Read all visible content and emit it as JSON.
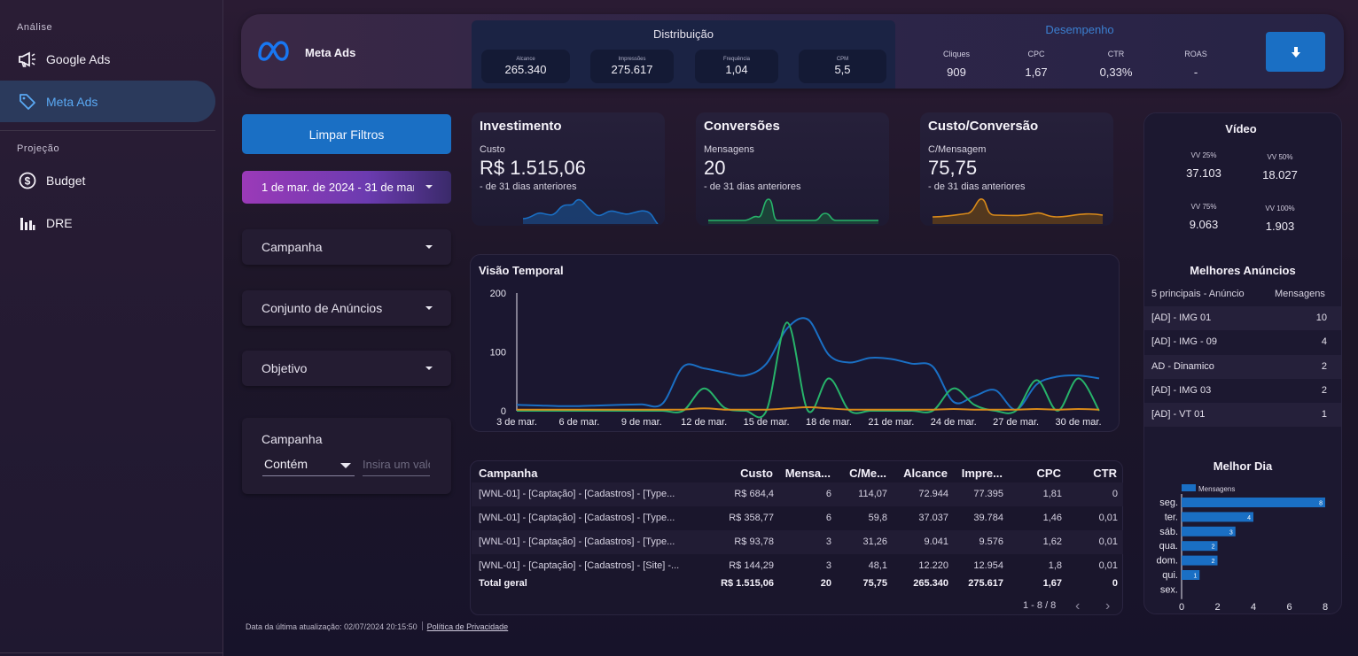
{
  "sidebar": {
    "section_analysis": "Análise",
    "section_projection": "Projeção",
    "items": [
      {
        "label": "Google Ads",
        "icon": "megaphone-icon"
      },
      {
        "label": "Meta Ads",
        "icon": "tag-icon",
        "active": true
      },
      {
        "label": "Budget",
        "icon": "dollar-circle-icon"
      },
      {
        "label": "DRE",
        "icon": "bar-chart-icon"
      }
    ]
  },
  "header": {
    "title": "Meta Ads",
    "distribution": {
      "title": "Distribuição",
      "kpis": [
        {
          "label": "Alcance",
          "value": "265.340"
        },
        {
          "label": "Impressões",
          "value": "275.617"
        },
        {
          "label": "Frequência",
          "value": "1,04"
        },
        {
          "label": "CPM",
          "value": "5,5"
        }
      ]
    },
    "performance": {
      "title": "Desempenho",
      "kpis": [
        {
          "label": "Cliques",
          "value": "909"
        },
        {
          "label": "CPC",
          "value": "1,67"
        },
        {
          "label": "CTR",
          "value": "0,33%"
        },
        {
          "label": "ROAS",
          "value": "-"
        }
      ]
    },
    "download_icon": "download-arrow-icon"
  },
  "filters": {
    "clear_label": "Limpar Filtros",
    "date_range": "1 de mar. de 2024 - 31 de mar. de 2024",
    "campaign": "Campanha",
    "adset": "Conjunto de Anúncios",
    "objective": "Objetivo",
    "search": {
      "title": "Campanha",
      "operator": "Contém",
      "placeholder": "Insira um valor"
    }
  },
  "scorecards": [
    {
      "title": "Investimento",
      "metric": "Custo",
      "value": "R$ 1.515,06",
      "comparison": "- de 31 dias anteriores",
      "color": "#1a6fc4"
    },
    {
      "title": "Conversões",
      "metric": "Mensagens",
      "value": "20",
      "comparison": "- de 31 dias anteriores",
      "color": "#27b36a"
    },
    {
      "title": "Custo/Conversão",
      "metric": "C/Mensagem",
      "value": "75,75",
      "comparison": "- de 31 dias anteriores",
      "color": "#d98a1a"
    }
  ],
  "timeline": {
    "title": "Visão Temporal"
  },
  "chart_data": {
    "type": "line",
    "title": "Visão Temporal",
    "x": [
      "3 de mar.",
      "4 de mar.",
      "5 de mar.",
      "6 de mar.",
      "7 de mar.",
      "8 de mar.",
      "9 de mar.",
      "10 de mar.",
      "11 de mar.",
      "12 de mar.",
      "13 de mar.",
      "14 de mar.",
      "15 de mar.",
      "16 de mar.",
      "17 de mar.",
      "18 de mar.",
      "19 de mar.",
      "20 de mar.",
      "21 de mar.",
      "22 de mar.",
      "23 de mar.",
      "24 de mar.",
      "25 de mar.",
      "26 de mar.",
      "27 de mar.",
      "28 de mar.",
      "29 de mar.",
      "30 de mar.",
      "31 de mar."
    ],
    "xticks": [
      "3 de mar.",
      "6 de mar.",
      "9 de mar.",
      "12 de mar.",
      "15 de mar.",
      "18 de mar.",
      "21 de mar.",
      "24 de mar.",
      "27 de mar.",
      "30 de mar."
    ],
    "yticks": [
      "0",
      "100",
      "200"
    ],
    "ylim": [
      0,
      200
    ],
    "series": [
      {
        "color": "#1a6fc4",
        "values": [
          10,
          9,
          8,
          8,
          9,
          10,
          11,
          12,
          75,
          72,
          65,
          60,
          80,
          140,
          155,
          95,
          82,
          90,
          88,
          80,
          75,
          15,
          25,
          35,
          2,
          45,
          58,
          60,
          55
        ]
      },
      {
        "color": "#27b36a",
        "values": [
          0,
          0,
          0,
          0,
          0,
          0,
          0,
          0,
          0,
          38,
          5,
          0,
          0,
          150,
          0,
          55,
          0,
          0,
          0,
          0,
          0,
          38,
          10,
          0,
          0,
          52,
          0,
          55,
          0
        ]
      },
      {
        "color": "#d98a1a",
        "values": [
          2,
          2,
          2,
          2,
          2,
          2,
          2,
          2,
          2,
          4,
          2,
          2,
          2,
          4,
          6,
          4,
          2,
          2,
          2,
          2,
          2,
          3,
          2,
          2,
          2,
          3,
          2,
          3,
          2
        ]
      }
    ]
  },
  "table": {
    "headers": [
      "Campanha",
      "Custo",
      "Mensa...",
      "C/Me...",
      "Alcance",
      "Impre...",
      "CPC",
      "CTR"
    ],
    "rows": [
      [
        "[WNL-01] - [Captação] - [Cadastros] - [Type...",
        "R$ 684,4",
        "6",
        "114,07",
        "72.944",
        "77.395",
        "1,81",
        "0"
      ],
      [
        "[WNL-01] - [Captação] - [Cadastros] - [Type...",
        "R$ 358,77",
        "6",
        "59,8",
        "37.037",
        "39.784",
        "1,46",
        "0,01"
      ],
      [
        "[WNL-01] - [Captação] - [Cadastros] - [Type...",
        "R$ 93,78",
        "3",
        "31,26",
        "9.041",
        "9.576",
        "1,62",
        "0,01"
      ],
      [
        "[WNL-01] - [Captação] - [Cadastros] - [Site] -...",
        "R$ 144,29",
        "3",
        "48,1",
        "12.220",
        "12.954",
        "1,8",
        "0,01"
      ]
    ],
    "total": [
      "Total geral",
      "R$ 1.515,06",
      "20",
      "75,75",
      "265.340",
      "275.617",
      "1,67",
      "0"
    ],
    "pager": "1 - 8 / 8"
  },
  "video": {
    "title": "Vídeo",
    "metrics": [
      {
        "label": "VV 25%",
        "value": "37.103"
      },
      {
        "label": "VV 50%",
        "value": "18.027"
      },
      {
        "label": "VV 75%",
        "value": "9.063"
      },
      {
        "label": "VV 100%",
        "value": "1.903"
      }
    ]
  },
  "best_ads": {
    "title": "Melhores Anúncios",
    "col1": "5 principais - Anúncio",
    "col2": "Mensagens",
    "rows": [
      {
        "name": "[AD] - IMG 01",
        "value": "10"
      },
      {
        "name": "[AD] - IMG - 09",
        "value": "4"
      },
      {
        "name": "AD - Dinamico",
        "value": "2"
      },
      {
        "name": "[AD] - IMG 03",
        "value": "2"
      },
      {
        "name": "[AD] - VT 01",
        "value": "1"
      }
    ]
  },
  "best_day": {
    "title": "Melhor Dia",
    "legend": "Mensagens",
    "color": "#1a6fc4",
    "categories": [
      "seg.",
      "ter.",
      "sáb.",
      "qua.",
      "dom.",
      "qui.",
      "sex."
    ],
    "values": [
      8,
      4,
      3,
      2,
      2,
      1,
      0
    ],
    "xticks": [
      "0",
      "2",
      "4",
      "6",
      "8"
    ],
    "xlim": [
      0,
      8
    ]
  },
  "footer": {
    "updated": "Data da última atualização: 02/07/2024 20:15:50",
    "privacy": "Política de Privacidade"
  }
}
